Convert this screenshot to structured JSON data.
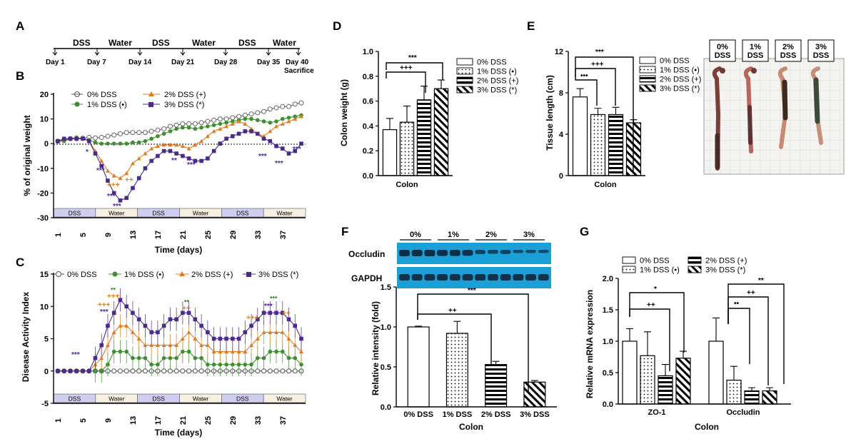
{
  "panels": {
    "a": "A",
    "b": "B",
    "c": "C",
    "d": "D",
    "e": "E",
    "f": "F",
    "g": "G"
  },
  "timeline": {
    "phases": [
      "DSS",
      "Water",
      "DSS",
      "Water",
      "DSS",
      "Water"
    ],
    "days": [
      "Day 1",
      "Day 7",
      "Day 14",
      "Day 21",
      "Day 28",
      "Day 35",
      "Day 40"
    ],
    "end_note": "Sacrifice"
  },
  "common": {
    "phase_labels": [
      "DSS",
      "Water",
      "DSS",
      "Water",
      "DSS",
      "Water"
    ],
    "sig1": "*",
    "sig2": "**",
    "sig3": "***",
    "plus2": "++",
    "plus3": "+++",
    "dot3": "•••",
    "dot2": "••"
  },
  "chart_data": [
    {
      "id": "B",
      "type": "line",
      "ylabel": "% of original weight",
      "xlabel": "Time (days)",
      "ylim": [
        -30,
        20
      ],
      "yticks": [
        "20",
        "10",
        "0",
        "-10",
        "-20",
        "-30"
      ],
      "xticks": [
        "1",
        "5",
        "9",
        "13",
        "17",
        "21",
        "25",
        "29",
        "33",
        "37"
      ],
      "legend": [
        "0% DSS",
        "1% DSS (•)",
        "2% DSS (+)",
        "3% DSS (*)"
      ],
      "colors": [
        "#666666",
        "#3f8f2f",
        "#e07b1f",
        "#4b2a8c"
      ],
      "series": [
        {
          "name": "0% DSS",
          "values": [
            1,
            1.5,
            2,
            2,
            2.2,
            2.5,
            2.3,
            2.5,
            3,
            3.5,
            4,
            4.5,
            4.5,
            4.5,
            4.5,
            5,
            5.5,
            6,
            7,
            7.5,
            8,
            8,
            8,
            8.5,
            9,
            9.5,
            10,
            10,
            10.5,
            11,
            11.5,
            12,
            12.5,
            13,
            14,
            14.5,
            15,
            15,
            16,
            16.5
          ]
        },
        {
          "name": "1% DSS (•)",
          "values": [
            1,
            1,
            2,
            2.5,
            2,
            1.5,
            0.5,
            0,
            0,
            0,
            0,
            0,
            0.5,
            0.5,
            1,
            2,
            3,
            4,
            5,
            6,
            6.5,
            6.5,
            6,
            6.5,
            7,
            7.5,
            8,
            8.5,
            9,
            9.5,
            10,
            10,
            9.5,
            9,
            8.5,
            9,
            10,
            10.5,
            11,
            11.5
          ]
        },
        {
          "name": "2% DSS (+)",
          "values": [
            1,
            2,
            2,
            2,
            2,
            1,
            -3,
            -7,
            -11,
            -13,
            -14,
            -12,
            -8,
            -6,
            -4,
            -2,
            -1,
            -0.5,
            -0.5,
            -0.5,
            -1,
            -2,
            -0.5,
            1,
            3,
            5,
            6,
            7,
            8,
            9,
            8,
            6,
            4,
            3,
            5,
            7,
            8,
            9,
            10,
            11
          ]
        },
        {
          "name": "3% DSS (*)",
          "values": [
            1,
            2,
            2,
            2,
            2,
            1,
            -4,
            -9,
            -15,
            -20,
            -23,
            -22,
            -18,
            -14,
            -10,
            -7,
            -5,
            -3,
            -3,
            -4,
            -5,
            -6,
            -7,
            -7,
            -6,
            -3,
            0,
            2,
            3,
            4,
            5,
            5,
            4,
            2,
            1,
            -1,
            -2,
            -4,
            -3,
            0
          ]
        }
      ]
    },
    {
      "id": "C",
      "type": "line",
      "ylabel": "Disease Activity Index",
      "xlabel": "Time (days)",
      "ylim": [
        -5,
        15
      ],
      "yticks": [
        "15",
        "10",
        "5",
        "0",
        "-5"
      ],
      "xticks": [
        "1",
        "5",
        "9",
        "13",
        "17",
        "21",
        "25",
        "29",
        "33",
        "37"
      ],
      "legend": [
        "0% DSS",
        "1% DSS (•)",
        "2% DSS (+)",
        "3% DSS (*)"
      ],
      "colors": [
        "#555555",
        "#3f8f2f",
        "#e07b1f",
        "#4b2a8c"
      ],
      "series": [
        {
          "name": "0% DSS",
          "values": [
            0,
            0,
            0,
            0,
            0,
            0,
            0,
            0,
            0,
            0,
            0,
            0,
            0,
            0,
            0,
            0,
            0,
            0,
            0,
            0,
            0,
            0,
            0,
            0,
            0,
            0,
            0,
            0,
            0,
            0,
            0,
            0,
            0,
            0,
            0,
            0,
            0,
            0,
            0,
            0
          ]
        },
        {
          "name": "1% DSS (•)",
          "values": [
            0,
            0,
            0,
            0,
            0,
            0,
            0,
            0,
            1,
            3,
            3,
            3,
            2,
            2,
            2,
            1,
            1,
            2,
            2,
            2,
            3,
            3,
            2,
            2,
            1,
            1,
            1,
            1,
            1,
            1,
            1,
            1,
            2,
            2,
            3,
            3,
            3,
            2,
            2,
            1
          ]
        },
        {
          "name": "2% DSS (+)",
          "values": [
            0,
            0,
            0,
            0,
            0,
            0,
            1,
            2,
            4,
            6,
            7,
            7,
            6,
            5,
            4,
            4,
            4,
            4,
            4,
            4,
            5,
            6,
            5,
            4,
            4,
            3,
            3,
            3,
            3,
            3,
            3,
            4,
            5,
            6,
            6,
            6,
            6,
            5,
            4,
            3
          ]
        },
        {
          "name": "3% DSS (*)",
          "values": [
            0,
            0,
            0,
            0,
            0,
            0,
            2,
            4,
            7,
            9,
            11,
            10,
            9,
            8,
            7,
            6,
            6,
            7,
            8,
            8,
            9,
            9,
            8,
            7,
            6,
            5,
            5,
            5,
            5,
            5,
            6,
            7,
            8,
            9,
            9,
            9,
            9,
            8,
            7,
            5
          ]
        }
      ]
    },
    {
      "id": "D",
      "type": "bar",
      "ylabel": "Colon weight (g)",
      "xlabel": "Colon",
      "ylim": [
        0,
        1.0
      ],
      "yticks": [
        "1.0",
        "0.8",
        "0.6",
        "0.4",
        "0.2",
        "0.0"
      ],
      "categories": [
        "0% DSS",
        "1% DSS (•)",
        "2% DSS (+)",
        "3% DSS (*)"
      ],
      "values": [
        0.37,
        0.43,
        0.61,
        0.7
      ],
      "errors": [
        0.09,
        0.13,
        0.11,
        0.07
      ]
    },
    {
      "id": "E",
      "type": "bar",
      "ylabel": "Tissue length (cm)",
      "xlabel": "Colon",
      "ylim": [
        0,
        12
      ],
      "yticks": [
        "12",
        "8",
        "4",
        "0"
      ],
      "categories": [
        "0% DSS",
        "1% DSS (•)",
        "2% DSS (+)",
        "3% DSS (*)"
      ],
      "values": [
        7.6,
        5.9,
        5.9,
        5.1
      ],
      "errors": [
        0.8,
        0.6,
        0.7,
        0.3
      ],
      "photo_labels": [
        "0%\nDSS",
        "1%\nDSS",
        "2%\nDSS",
        "3%\nDSS"
      ]
    },
    {
      "id": "F",
      "type": "bar",
      "ylabel": "Relative intensity (fold)",
      "xlabel": "Colon",
      "ylim": [
        0,
        1.5
      ],
      "yticks": [
        "1.5",
        "1.0",
        "0.5",
        "0.0"
      ],
      "categories": [
        "0% DSS",
        "1% DSS",
        "2% DSS",
        "3% DSS"
      ],
      "values": [
        1.0,
        0.92,
        0.53,
        0.31
      ],
      "errors": [
        0.01,
        0.15,
        0.04,
        0.02
      ],
      "blot_rows": [
        "Occludin",
        "GAPDH"
      ],
      "blot_groups": [
        "0%",
        "1%",
        "2%",
        "3%"
      ]
    },
    {
      "id": "G",
      "type": "bar",
      "ylabel": "Relative mRNA expression",
      "xlabel": "Colon",
      "ylim": [
        0,
        2.0
      ],
      "yticks": [
        "2.0",
        "1.5",
        "1.0",
        "0.5",
        "0.0"
      ],
      "categories": [
        "ZO-1",
        "Occludin"
      ],
      "legend": [
        "0% DSS",
        "1% DSS (•)",
        "2% DSS (+)",
        "3% DSS (*)"
      ],
      "series": [
        {
          "name": "0% DSS",
          "values": [
            1.0,
            1.0
          ],
          "errors": [
            0.2,
            0.37
          ]
        },
        {
          "name": "1% DSS (•)",
          "values": [
            0.77,
            0.38
          ],
          "errors": [
            0.38,
            0.22
          ]
        },
        {
          "name": "2% DSS (+)",
          "values": [
            0.45,
            0.21
          ],
          "errors": [
            0.18,
            0.05
          ]
        },
        {
          "name": "3% DSS (*)",
          "values": [
            0.73,
            0.21
          ],
          "errors": [
            0.11,
            0.05
          ]
        }
      ]
    }
  ]
}
